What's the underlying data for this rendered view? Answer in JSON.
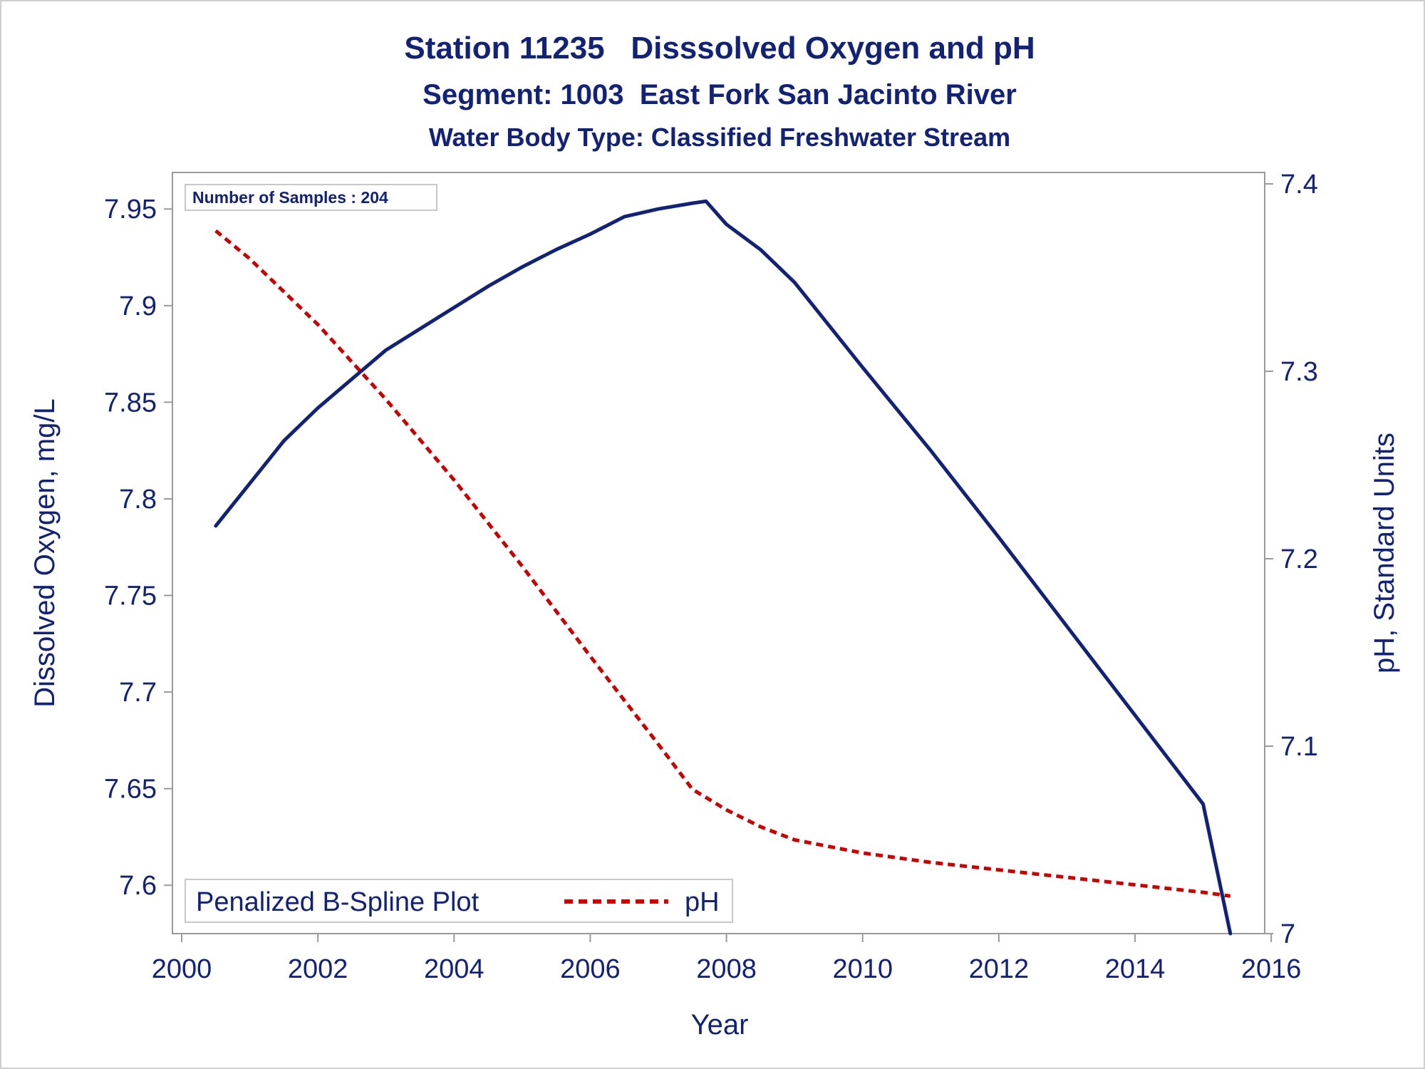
{
  "chart_data": {
    "type": "line",
    "title": "Station 11235   Disssolved Oxygen and pH",
    "subtitle": "Segment: 1003  East Fork San Jacinto River",
    "subtitle2": "Water Body Type: Classified Freshwater Stream",
    "xlabel": "Year",
    "ylabel_left": "Dissolved Oxygen, mg/L",
    "ylabel_right": "pH, Standard Units",
    "xlim": [
      2000,
      2016
    ],
    "ylim_left": [
      7.575,
      7.963
    ],
    "ylim_right": [
      7.0,
      7.4
    ],
    "x_ticks": [
      "2000",
      "2002",
      "2004",
      "2006",
      "2008",
      "2010",
      "2012",
      "2014",
      "2016"
    ],
    "y_left_ticks": [
      "7.6",
      "7.65",
      "7.7",
      "7.75",
      "7.8",
      "7.85",
      "7.9",
      "7.95"
    ],
    "y_right_ticks": [
      "7",
      "7.1",
      "7.2",
      "7.3",
      "7.4"
    ],
    "annotation": "Number of Samples : 204",
    "legend": {
      "title": "Penalized B-Spline Plot",
      "placement": "bottom-left",
      "entries": [
        "pH"
      ]
    },
    "grid": false,
    "series": [
      {
        "axis": "left",
        "color": "#112277",
        "style": "solid",
        "x": [
          2000.5,
          2001.0,
          2001.5,
          2002.0,
          2002.5,
          2003.0,
          2003.5,
          2004.0,
          2004.5,
          2005.0,
          2005.5,
          2006.0,
          2006.5,
          2007.0,
          2007.5,
          2007.7,
          2008.0,
          2008.5,
          2009.0,
          2010.0,
          2011.0,
          2012.0,
          2013.0,
          2014.0,
          2015.0,
          2015.4
        ],
        "y": [
          7.786,
          7.808,
          7.83,
          7.847,
          7.862,
          7.877,
          7.888,
          7.899,
          7.91,
          7.92,
          7.929,
          7.937,
          7.946,
          7.95,
          7.953,
          7.954,
          7.942,
          7.929,
          7.912,
          7.868,
          7.825,
          7.78,
          7.734,
          7.688,
          7.642,
          7.575
        ]
      },
      {
        "name": "pH",
        "axis": "right",
        "color": "#cc0000",
        "style": "dashed",
        "x": [
          2000.5,
          2001.0,
          2002.0,
          2003.0,
          2004.0,
          2005.0,
          2006.0,
          2007.0,
          2007.5,
          2008.0,
          2008.5,
          2009.0,
          2010.0,
          2011.0,
          2012.0,
          2013.0,
          2014.0,
          2015.0,
          2015.4
        ],
        "y": [
          7.375,
          7.36,
          7.325,
          7.285,
          7.242,
          7.196,
          7.148,
          7.101,
          7.077,
          7.066,
          7.057,
          7.05,
          7.043,
          7.038,
          7.034,
          7.03,
          7.026,
          7.022,
          7.02
        ]
      }
    ]
  }
}
